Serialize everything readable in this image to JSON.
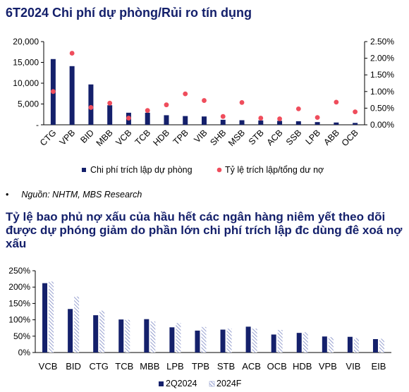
{
  "colors": {
    "navy": "#14206b",
    "pink": "#ef4d5c",
    "hatch": "#7d89c4"
  },
  "chart1": {
    "title": "6T2024 Chi phí dự phòng/Rủi ro tín dụng",
    "source_bullet": "•",
    "source": "Nguồn: NHTM, MBS Research"
  },
  "chart2": {
    "title": "Tỷ lệ bao phủ nợ xấu của hầu hết các ngân hàng niêm yết theo dõi được dự phóng giảm do phần lớn chi phí trích lập đc dùng đê xoá nợ xấu"
  },
  "chart_data": [
    {
      "type": "bar",
      "title": "6T2024 Chi phí dự phòng/Rủi ro tín dụng",
      "categories": [
        "CTG",
        "VPB",
        "BID",
        "MBB",
        "VCB",
        "TCB",
        "HDB",
        "TPB",
        "VIB",
        "SHB",
        "MSB",
        "STB",
        "ACB",
        "SSB",
        "LPB",
        "ABB",
        "OCB"
      ],
      "series": [
        {
          "name": "Chi phí trích lập dự phòng",
          "axis": "left",
          "kind": "bar",
          "values": [
            15800,
            14100,
            9700,
            4700,
            2900,
            2900,
            2300,
            2100,
            2000,
            1200,
            1100,
            1050,
            950,
            850,
            650,
            550,
            450
          ]
        },
        {
          "name": "Tỷ lệ trích lập/tổng dư nợ",
          "axis": "right",
          "kind": "dot",
          "values": [
            1.0,
            2.15,
            0.52,
            0.65,
            0.2,
            0.43,
            0.6,
            0.93,
            0.73,
            0.25,
            0.67,
            0.2,
            0.18,
            0.48,
            0.22,
            0.68,
            0.39
          ]
        }
      ],
      "y_left_ticks": [
        "20,000",
        "15,000",
        "10,000",
        "5,000",
        "-"
      ],
      "y_right_ticks": [
        "2.50%",
        "2.00%",
        "1.50%",
        "1.00%",
        "0.50%",
        "0.00%"
      ],
      "ylim_left": [
        0,
        20000
      ],
      "ylim_right": [
        0,
        2.5
      ],
      "grid": false,
      "legend": "bottom"
    },
    {
      "type": "bar",
      "categories": [
        "VCB",
        "BID",
        "CTG",
        "TCB",
        "MBB",
        "LPB",
        "TPB",
        "STB",
        "ACB",
        "OCB",
        "HDB",
        "VPB",
        "VIB",
        "EIB"
      ],
      "series": [
        {
          "name": "2Q2024",
          "pattern": "solid",
          "values": [
            212,
            133,
            114,
            101,
            102,
            77,
            67,
            70,
            79,
            55,
            60,
            49,
            48,
            41
          ]
        },
        {
          "name": "2024F",
          "pattern": "hatched",
          "values": [
            217,
            171,
            128,
            100,
            95,
            90,
            78,
            73,
            73,
            69,
            62,
            47,
            44,
            42
          ]
        }
      ],
      "y_ticks": [
        "250%",
        "200%",
        "150%",
        "100%",
        "50%",
        "0%"
      ],
      "ylim": [
        0,
        250
      ],
      "grid": false,
      "legend": "bottom"
    }
  ]
}
